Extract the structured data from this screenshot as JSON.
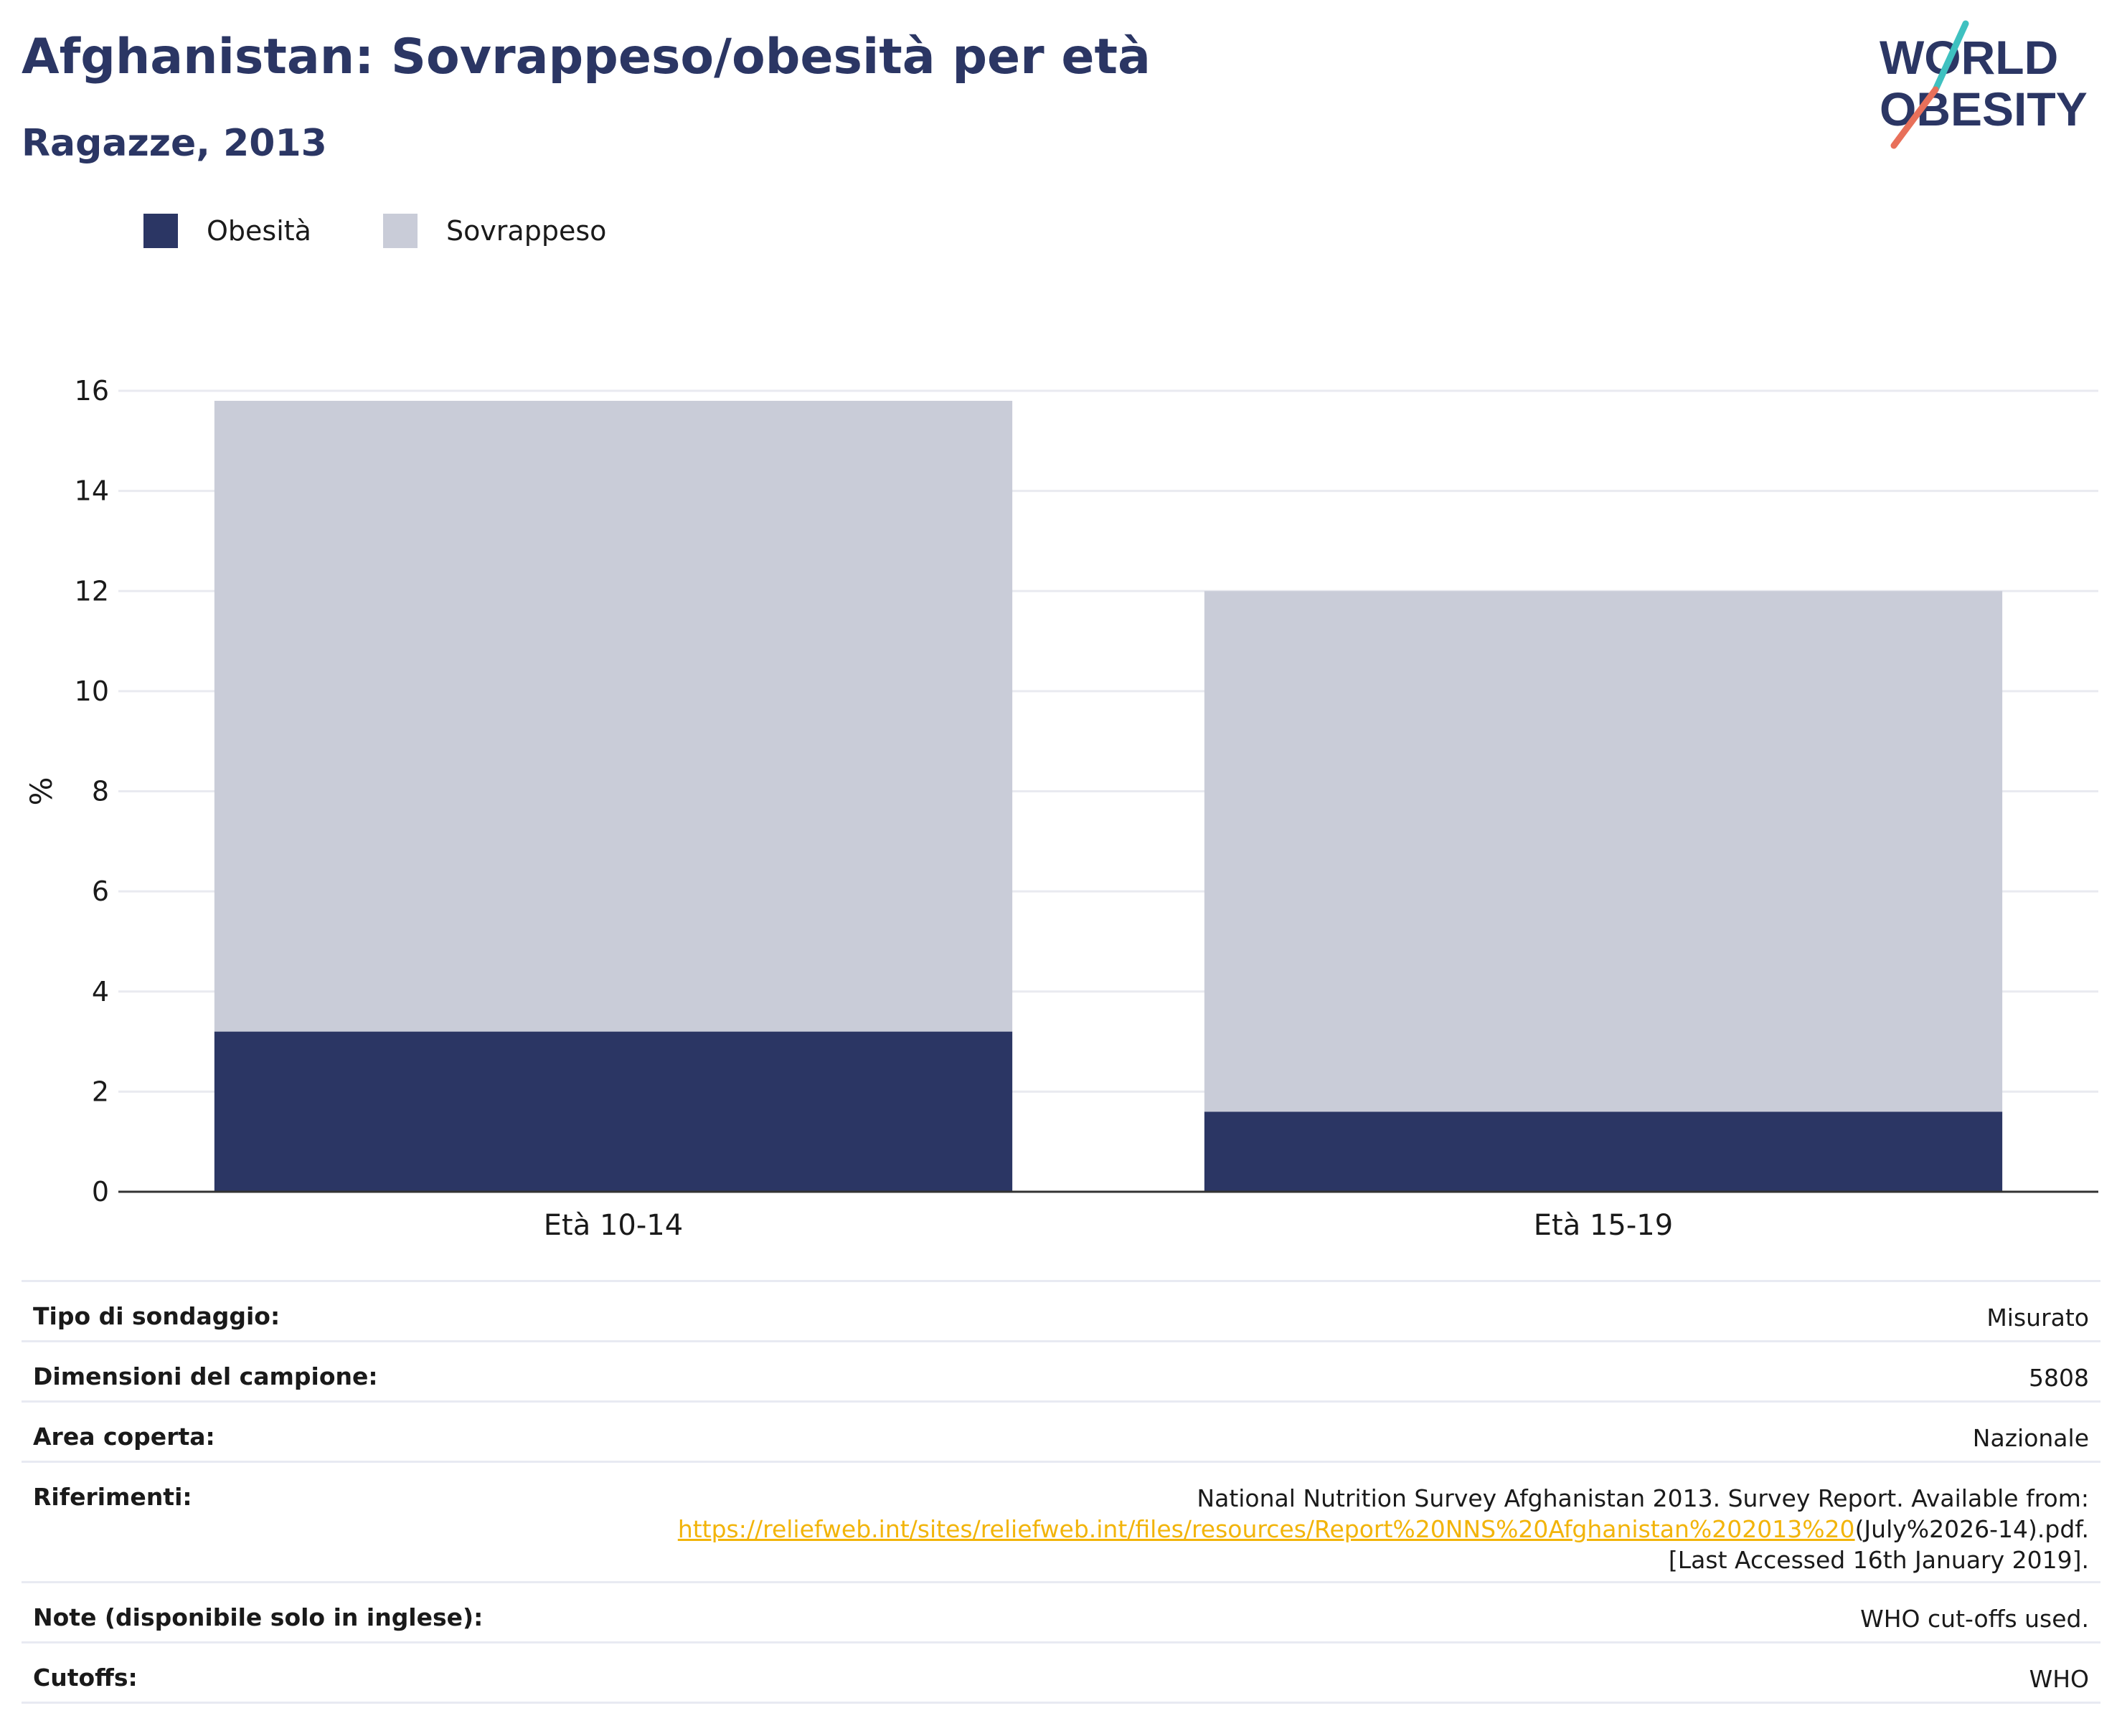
{
  "header": {
    "title": "Afghanistan: Sovrappeso/obesità per età",
    "subtitle": "Ragazze, 2013"
  },
  "logo": {
    "line1": "WORLD",
    "line2": "OBESITY"
  },
  "legend": [
    {
      "label": "Obesità",
      "color": "#2b3664"
    },
    {
      "label": "Sovrappeso",
      "color": "#c9ccd8"
    }
  ],
  "chart_data": {
    "type": "bar",
    "stacked": true,
    "categories": [
      "Età 10-14",
      "Età 15-19"
    ],
    "series": [
      {
        "name": "Obesità",
        "values": [
          3.2,
          1.6
        ],
        "color": "#2b3664"
      },
      {
        "name": "Sovrappeso",
        "values": [
          12.6,
          10.4
        ],
        "color": "#c9ccd8"
      }
    ],
    "ylabel": "%",
    "ylim": [
      0,
      16
    ],
    "yticks": [
      0,
      2,
      4,
      6,
      8,
      10,
      12,
      14,
      16
    ],
    "grid": true
  },
  "meta": {
    "rows": [
      {
        "label": "Tipo di sondaggio:",
        "value": "Misurato"
      },
      {
        "label": "Dimensioni del campione:",
        "value": "5808"
      },
      {
        "label": "Area coperta:",
        "value": "Nazionale"
      },
      {
        "label": "Riferimenti:",
        "value_pre": "National Nutrition Survey Afghanistan 2013. Survey Report. Available from:",
        "link": "https://reliefweb.int/sites/reliefweb.int/files/resources/Report%20NNS%20Afghanistan%202013%20",
        "value_post": "(July%2026-14).pdf. [Last Accessed 16th January 2019]."
      },
      {
        "label": "Note (disponibile solo in inglese):",
        "value": "WHO cut-offs used."
      },
      {
        "label": "Cutoffs:",
        "value": "WHO"
      }
    ]
  }
}
